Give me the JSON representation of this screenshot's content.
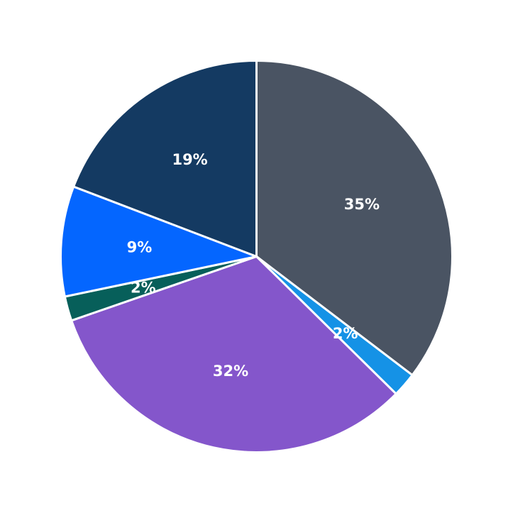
{
  "chart_data": {
    "type": "pie",
    "start_angle_deg": 90,
    "direction": "clockwise",
    "legend": "none",
    "slices": [
      {
        "value": 35,
        "label": "35%",
        "color": "#4a5463"
      },
      {
        "value": 2,
        "label": "2%",
        "color": "#1592e6"
      },
      {
        "value": 32,
        "label": "32%",
        "color": "#8456cb"
      },
      {
        "value": 2,
        "label": "2%",
        "color": "#075f5a"
      },
      {
        "value": 9,
        "label": "9%",
        "color": "#0466ff"
      },
      {
        "value": 19,
        "label": "19%",
        "color": "#143a62"
      }
    ]
  }
}
